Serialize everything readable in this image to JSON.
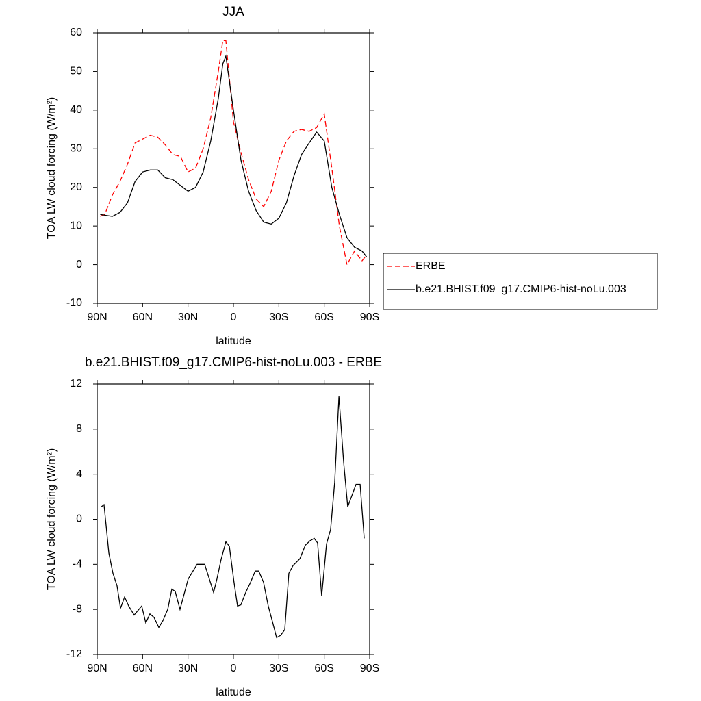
{
  "chart_data": [
    {
      "type": "line",
      "title": "JJA",
      "xlabel": "latitude",
      "ylabel": "TOA LW cloud forcing (W/m²)",
      "x": [
        88,
        85,
        80,
        75,
        70,
        65,
        60,
        55,
        50,
        45,
        40,
        35,
        30,
        25,
        20,
        15,
        10,
        7,
        5,
        0,
        -5,
        -10,
        -15,
        -20,
        -25,
        -30,
        -35,
        -40,
        -45,
        -50,
        -55,
        -60,
        -65,
        -70,
        -75,
        -80,
        -85,
        -88
      ],
      "series": [
        {
          "name": "ERBE",
          "color": "#ff0000",
          "style": "dashed",
          "values": [
            12.5,
            13,
            18,
            21.5,
            26,
            31.5,
            32.5,
            33.5,
            33,
            31,
            28.5,
            28,
            24,
            25,
            30,
            38,
            50,
            58,
            58,
            37,
            29,
            22,
            17,
            15,
            19,
            27,
            32,
            34.5,
            35,
            34.5,
            35.5,
            39,
            25,
            10,
            0,
            3.5,
            1,
            2.5
          ]
        },
        {
          "name": "b.e21.BHIST.f09_g17.CMIP6-hist-noLu.003",
          "color": "#000000",
          "style": "solid",
          "values": [
            13,
            12.8,
            12.5,
            13.5,
            16,
            21.5,
            24,
            24.5,
            24.5,
            22.5,
            22,
            20.5,
            19,
            20,
            24,
            32,
            43,
            52,
            54,
            40,
            27,
            19,
            14,
            11,
            10.5,
            12,
            16,
            23,
            28.5,
            31.5,
            34.3,
            32,
            20,
            13,
            7,
            4.5,
            3.5,
            2
          ]
        }
      ],
      "xlim": [
        90,
        -90
      ],
      "xticks": [
        {
          "value": 90,
          "label": "90N"
        },
        {
          "value": 60,
          "label": "60N"
        },
        {
          "value": 30,
          "label": "30N"
        },
        0,
        {
          "value": -30,
          "label": "30S"
        },
        {
          "value": -60,
          "label": "60S"
        },
        {
          "value": -90,
          "label": "90S"
        }
      ],
      "ylim": [
        -10,
        60
      ],
      "yticks": [
        -10,
        0,
        10,
        20,
        30,
        40,
        50,
        60
      ],
      "legend": "right"
    },
    {
      "type": "line",
      "title": "b.e21.BHIST.f09_g17.CMIP6-hist-noLu.003 - ERBE",
      "xlabel": "latitude",
      "ylabel": "TOA LW cloud forcing (W/m²)",
      "x": [
        87.7,
        85.5,
        82.3,
        79.6,
        76.9,
        74.6,
        71.9,
        69.2,
        65.6,
        60.6,
        57.9,
        55.2,
        52.5,
        49.3,
        46.6,
        43.4,
        40.7,
        38.5,
        35.3,
        33.1,
        29.9,
        24.0,
        19.0,
        13.1,
        10.9,
        8.2,
        5.0,
        2.7,
        -0.4,
        -2.7,
        -4.9,
        -8.1,
        -11.3,
        -14.4,
        -16.7,
        -19.9,
        -23.0,
        -25.8,
        -28.5,
        -31.2,
        -33.9,
        -36.6,
        -39.4,
        -43.9,
        -47.5,
        -50.7,
        -53.4,
        -55.6,
        -58.3,
        -61.5,
        -64.2,
        -66.9,
        -69.7,
        -72.8,
        -75.5,
        -81.0,
        -83.7,
        -86.4
      ],
      "series": [
        {
          "color": "#000000",
          "style": "solid",
          "values": [
            1.06,
            1.3,
            -3.0,
            -4.8,
            -5.9,
            -7.9,
            -6.9,
            -7.7,
            -8.5,
            -7.7,
            -9.2,
            -8.4,
            -8.7,
            -9.6,
            -9.0,
            -8.0,
            -6.2,
            -6.4,
            -8.0,
            -6.9,
            -5.3,
            -4.0,
            -4.0,
            -6.5,
            -5.3,
            -3.6,
            -2.0,
            -2.4,
            -5.6,
            -7.7,
            -7.6,
            -6.5,
            -5.6,
            -4.6,
            -4.6,
            -5.6,
            -7.7,
            -9.1,
            -10.5,
            -10.3,
            -9.8,
            -4.8,
            -4.1,
            -3.5,
            -2.3,
            -1.9,
            -1.7,
            -2.1,
            -6.8,
            -2.2,
            -0.9,
            3.3,
            10.9,
            5.1,
            1.1,
            3.1,
            3.1,
            -1.7
          ]
        }
      ],
      "xlim": [
        90,
        -90
      ],
      "xticks": [
        {
          "value": 90,
          "label": "90N"
        },
        {
          "value": 60,
          "label": "60N"
        },
        {
          "value": 30,
          "label": "30N"
        },
        0,
        {
          "value": -30,
          "label": "30S"
        },
        {
          "value": -60,
          "label": "60S"
        },
        {
          "value": -90,
          "label": "90S"
        }
      ],
      "ylim": [
        -12,
        12
      ],
      "yticks": [
        -12,
        -8,
        -4,
        0,
        4,
        8,
        12
      ]
    }
  ]
}
